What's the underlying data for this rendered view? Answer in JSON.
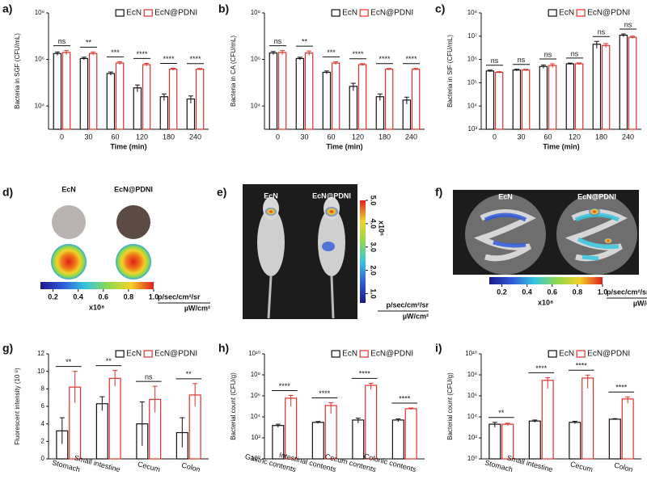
{
  "chart_data": [
    {
      "type": "bar",
      "panel": "a)",
      "ylabel": "Bacteria in SGF (CFU/mL)",
      "xlabel": "Time (min)",
      "log_y": true,
      "categories": [
        "0",
        "30",
        "60",
        "120",
        "180",
        "240"
      ],
      "ylim": [
        1000,
        100000000
      ],
      "yticks": [
        {
          "value": 10000,
          "label": "10⁴"
        },
        {
          "value": 1000000,
          "label": "10⁶"
        },
        {
          "value": 100000000,
          "label": "10⁸"
        }
      ],
      "series": [
        {
          "name": "EcN",
          "color": "#111111",
          "values": [
            1800000,
            1100000,
            250000,
            60000,
            25000,
            20000
          ],
          "errors": [
            300000,
            150000,
            40000,
            20000,
            8000,
            7000
          ]
        },
        {
          "name": "EcN@PDNI",
          "color": "#e0302a",
          "values": [
            2000000,
            1800000,
            700000,
            600000,
            380000,
            380000
          ],
          "errors": [
            400000,
            300000,
            100000,
            80000,
            40000,
            30000
          ]
        }
      ],
      "significance": [
        "ns",
        "**",
        "***",
        "****",
        "****",
        "****"
      ]
    },
    {
      "type": "bar",
      "panel": "b)",
      "ylabel": "Bacteria in CA (CFU/mL)",
      "xlabel": "Time (min)",
      "log_y": true,
      "categories": [
        "0",
        "30",
        "60",
        "120",
        "180",
        "240"
      ],
      "ylim": [
        1000,
        100000000
      ],
      "yticks": [
        {
          "value": 10000,
          "label": "10⁴"
        },
        {
          "value": 1000000,
          "label": "10⁶"
        },
        {
          "value": 100000000,
          "label": "10⁸"
        }
      ],
      "series": [
        {
          "name": "EcN",
          "color": "#111111",
          "values": [
            1900000,
            1100000,
            280000,
            70000,
            25000,
            18000
          ],
          "errors": [
            300000,
            150000,
            40000,
            25000,
            8000,
            6000
          ]
        },
        {
          "name": "EcN@PDNI",
          "color": "#e0302a",
          "values": [
            2000000,
            1900000,
            700000,
            600000,
            380000,
            380000
          ],
          "errors": [
            400000,
            400000,
            100000,
            60000,
            30000,
            30000
          ]
        }
      ],
      "significance": [
        "ns",
        "**",
        "***",
        "****",
        "****",
        "****"
      ]
    },
    {
      "type": "bar",
      "panel": "c)",
      "ylabel": "Bacteria in SIF (CFU/mL)",
      "xlabel": "Time (min)",
      "log_y": true,
      "categories": [
        "0",
        "30",
        "60",
        "120",
        "180",
        "240"
      ],
      "ylim": [
        1000,
        100000000
      ],
      "yticks": [
        {
          "value": 1000,
          "label": "10³"
        },
        {
          "value": 10000,
          "label": "10⁴"
        },
        {
          "value": 100000,
          "label": "10⁵"
        },
        {
          "value": 1000000,
          "label": "10⁶"
        },
        {
          "value": 10000000,
          "label": "10⁷"
        },
        {
          "value": 100000000,
          "label": "10⁸"
        }
      ],
      "series": [
        {
          "name": "EcN",
          "color": "#111111",
          "values": [
            320000,
            350000,
            500000,
            650000,
            4500000,
            11000000
          ],
          "errors": [
            30000,
            30000,
            80000,
            50000,
            1500000,
            1500000
          ]
        },
        {
          "name": "EcN@PDNI",
          "color": "#e0302a",
          "values": [
            280000,
            350000,
            550000,
            650000,
            4000000,
            9000000
          ],
          "errors": [
            20000,
            30000,
            100000,
            60000,
            800000,
            1000000
          ]
        }
      ],
      "significance": [
        "ns",
        "ns",
        "ns",
        "ns",
        "ns",
        "ns"
      ]
    },
    {
      "type": "image",
      "panel": "d)",
      "labels": [
        "EcN",
        "EcN@PDNI"
      ],
      "colorbar_orientation": "horizontal",
      "clim": [
        0.1,
        1.0
      ],
      "colorbar_ticks": [
        0.2,
        0.4,
        0.6,
        0.8,
        {
          "value": 1,
          "label": "1.0"
        }
      ],
      "colorbar_multiplier": "x10⁸",
      "unit_top": "p/sec/cm²/sr",
      "unit_bottom": "µW/cm²"
    },
    {
      "type": "image",
      "panel": "e)",
      "labels": [
        "EcN",
        "EcN@PDNI"
      ],
      "colorbar_orientation": "vertical",
      "clim": [
        0.6,
        5.0
      ],
      "colorbar_ticks": [
        {
          "value": 1,
          "label": "1.0"
        },
        {
          "value": 2,
          "label": "2.0"
        },
        {
          "value": 3,
          "label": "3.0"
        },
        {
          "value": 4,
          "label": "4.0"
        },
        {
          "value": 5,
          "label": "5.0"
        }
      ],
      "colorbar_multiplier": "x10⁶",
      "unit_top": "p/sec/cm²/sr",
      "unit_bottom": "µW/cm²"
    },
    {
      "type": "image",
      "panel": "f)",
      "labels": [
        "EcN",
        "EcN@PDNI"
      ],
      "colorbar_orientation": "horizontal",
      "clim": [
        0.1,
        1.0
      ],
      "colorbar_ticks": [
        0.2,
        0.4,
        0.6,
        0.8,
        {
          "value": 1,
          "label": "1.0"
        }
      ],
      "colorbar_multiplier": "x10⁸",
      "unit_top": "p/sec/cm²/sr",
      "unit_bottom": "µW/cm²"
    },
    {
      "type": "bar",
      "panel": "g)",
      "ylabel": "Fluorescent intensity (10 ⁸)",
      "log_y": false,
      "categories": [
        "Stomach",
        "Small intestine",
        "Cecum",
        "Colon"
      ],
      "ylim": [
        0,
        12
      ],
      "yticks": [
        0,
        2,
        4,
        6,
        8,
        10,
        12
      ],
      "series": [
        {
          "name": "EcN",
          "color": "#111111",
          "values": [
            3.2,
            6.3,
            4.0,
            3.0
          ],
          "errors": [
            1.5,
            0.8,
            2.5,
            1.7
          ]
        },
        {
          "name": "EcN@PDNI",
          "color": "#e0302a",
          "values": [
            8.2,
            9.2,
            6.8,
            7.3
          ],
          "errors": [
            1.8,
            0.9,
            1.5,
            1.3
          ]
        }
      ],
      "significance": [
        "**",
        "**",
        "ns",
        "**"
      ]
    },
    {
      "type": "bar",
      "panel": "h)",
      "ylabel": "Bacterial count (CFU/g)",
      "log_y": true,
      "categories": [
        "Gastric contents",
        "Intestinal contents",
        "Cecum contents",
        "Colonic contents"
      ],
      "ylim": [
        1,
        10000000000
      ],
      "yticks": [
        {
          "value": 1,
          "label": "10⁰"
        },
        {
          "value": 100,
          "label": "10²"
        },
        {
          "value": 10000,
          "label": "10⁴"
        },
        {
          "value": 1000000,
          "label": "10⁶"
        },
        {
          "value": 100000000,
          "label": "10⁸"
        },
        {
          "value": 10000000000,
          "label": "10¹⁰"
        }
      ],
      "series": [
        {
          "name": "EcN",
          "color": "#111111",
          "values": [
            1500,
            3000,
            5000,
            5000
          ],
          "errors": [
            500,
            600,
            2500,
            1500
          ]
        },
        {
          "name": "EcN@PDNI",
          "color": "#e0302a",
          "values": [
            600000,
            120000,
            10000000,
            60000
          ],
          "errors": [
            500000,
            100000,
            6000000,
            10000
          ]
        }
      ],
      "significance": [
        "****",
        "****",
        "****",
        "****"
      ]
    },
    {
      "type": "bar",
      "panel": "i)",
      "ylabel": "Bacterial count (CFU/g)",
      "log_y": true,
      "categories": [
        "Stomach",
        "Small intestine",
        "Cecum",
        "Colon"
      ],
      "ylim": [
        1,
        10000000000
      ],
      "yticks": [
        {
          "value": 1,
          "label": "10⁰"
        },
        {
          "value": 100,
          "label": "10²"
        },
        {
          "value": 10000,
          "label": "10⁴"
        },
        {
          "value": 1000000,
          "label": "10⁶"
        },
        {
          "value": 100000000,
          "label": "10⁸"
        },
        {
          "value": 10000000000,
          "label": "10¹⁰"
        }
      ],
      "series": [
        {
          "name": "EcN",
          "color": "#111111",
          "values": [
            2000,
            4000,
            3000,
            6000
          ],
          "errors": [
            1000,
            1000,
            800,
            800
          ]
        },
        {
          "name": "EcN@PDNI",
          "color": "#e0302a",
          "values": [
            2000,
            30000000,
            50000000,
            500000
          ],
          "errors": [
            500,
            25000000,
            45000000,
            300000
          ]
        }
      ],
      "significance": [
        "**",
        "****",
        "****",
        "****"
      ]
    }
  ]
}
